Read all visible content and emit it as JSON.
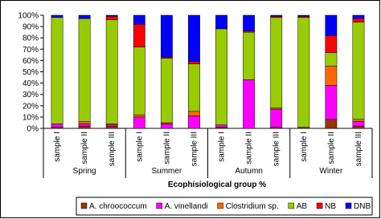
{
  "chart_data": {
    "type": "stacked_bar_100",
    "x_axis_label": "Ecophisiological group %",
    "categories": [
      "sample I",
      "sample II",
      "sample III",
      "sample I",
      "sample II",
      "sample III",
      "sample I",
      "sample II",
      "sample III",
      "sample I",
      "sample II",
      "sample III"
    ],
    "groups": [
      "Spring",
      "Summer",
      "Autumn",
      "Winter"
    ],
    "series": [
      {
        "name": "A. chroococcum",
        "color": "#993300",
        "values": [
          1,
          2,
          2,
          0,
          0,
          0,
          1,
          0,
          1,
          1,
          8,
          2
        ]
      },
      {
        "name": "A. vinellandi",
        "color": "#ff00ff",
        "values": [
          3,
          2,
          1,
          10,
          4,
          11,
          2,
          43,
          16,
          0,
          30,
          4
        ]
      },
      {
        "name": "Clostridium sp.",
        "color": "#ff6600",
        "values": [
          0,
          2,
          1,
          2,
          1,
          4,
          0,
          0,
          1,
          0,
          17,
          2
        ]
      },
      {
        "name": "AB",
        "color": "#99cc00",
        "values": [
          94,
          91,
          92,
          60,
          57,
          42,
          85,
          42,
          80,
          97,
          12,
          86
        ]
      },
      {
        "name": "NB",
        "color": "#ff0000",
        "values": [
          0,
          0,
          3,
          20,
          1,
          2,
          0,
          1,
          1,
          1,
          15,
          3
        ]
      },
      {
        "name": "DNB",
        "color": "#0000ff",
        "values": [
          2,
          3,
          1,
          8,
          37,
          41,
          12,
          14,
          1,
          1,
          18,
          3
        ]
      }
    ],
    "ylim": [
      0,
      100
    ],
    "yticks": [
      {
        "value": 0,
        "label": "0%"
      },
      {
        "value": 10,
        "label": "10%"
      },
      {
        "value": 20,
        "label": "20%"
      },
      {
        "value": 30,
        "label": "30%"
      },
      {
        "value": 40,
        "label": "40%"
      },
      {
        "value": 50,
        "label": "50%"
      },
      {
        "value": 60,
        "label": "60%"
      },
      {
        "value": 70,
        "label": "70%"
      },
      {
        "value": 80,
        "label": "80%"
      },
      {
        "value": 90,
        "label": "90%"
      },
      {
        "value": 100,
        "label": "100%"
      }
    ],
    "legend": "bottom"
  }
}
